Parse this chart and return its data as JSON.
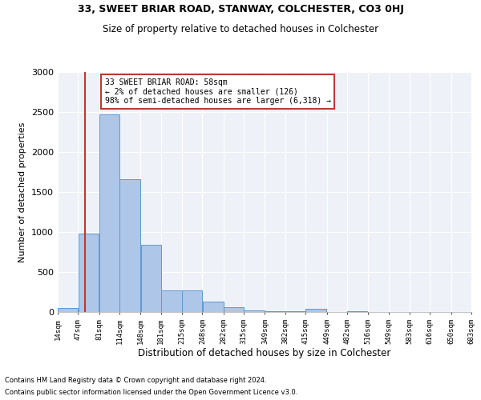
{
  "title1": "33, SWEET BRIAR ROAD, STANWAY, COLCHESTER, CO3 0HJ",
  "title2": "Size of property relative to detached houses in Colchester",
  "xlabel": "Distribution of detached houses by size in Colchester",
  "ylabel": "Number of detached properties",
  "footnote1": "Contains HM Land Registry data © Crown copyright and database right 2024.",
  "footnote2": "Contains public sector information licensed under the Open Government Licence v3.0.",
  "annotation_line1": "33 SWEET BRIAR ROAD: 58sqm",
  "annotation_line2": "← 2% of detached houses are smaller (126)",
  "annotation_line3": "98% of semi-detached houses are larger (6,318) →",
  "property_size": 58,
  "bar_left_edges": [
    14,
    47,
    81,
    114,
    148,
    181,
    215,
    248,
    282,
    315,
    349,
    382,
    415,
    449,
    482,
    516,
    549,
    583,
    616,
    650
  ],
  "bar_widths": [
    33,
    34,
    33,
    34,
    33,
    34,
    33,
    34,
    33,
    34,
    33,
    34,
    33,
    34,
    33,
    34,
    33,
    34,
    33,
    33
  ],
  "bar_heights": [
    50,
    985,
    2470,
    1660,
    840,
    270,
    270,
    130,
    60,
    25,
    15,
    10,
    45,
    5,
    10,
    3,
    3,
    2,
    2,
    2
  ],
  "bar_color": "#aec6e8",
  "bar_edge_color": "#5b9bd5",
  "vline_color": "#c0392b",
  "vline_x": 58,
  "annotation_box_color": "#c0392b",
  "bg_color": "#eef2f8",
  "ylim": [
    0,
    3000
  ],
  "yticks": [
    0,
    500,
    1000,
    1500,
    2000,
    2500,
    3000
  ],
  "xtick_labels": [
    "14sqm",
    "47sqm",
    "81sqm",
    "114sqm",
    "148sqm",
    "181sqm",
    "215sqm",
    "248sqm",
    "282sqm",
    "315sqm",
    "349sqm",
    "382sqm",
    "415sqm",
    "449sqm",
    "482sqm",
    "516sqm",
    "549sqm",
    "583sqm",
    "616sqm",
    "650sqm",
    "683sqm"
  ],
  "figsize": [
    6.0,
    5.0
  ],
  "dpi": 100
}
